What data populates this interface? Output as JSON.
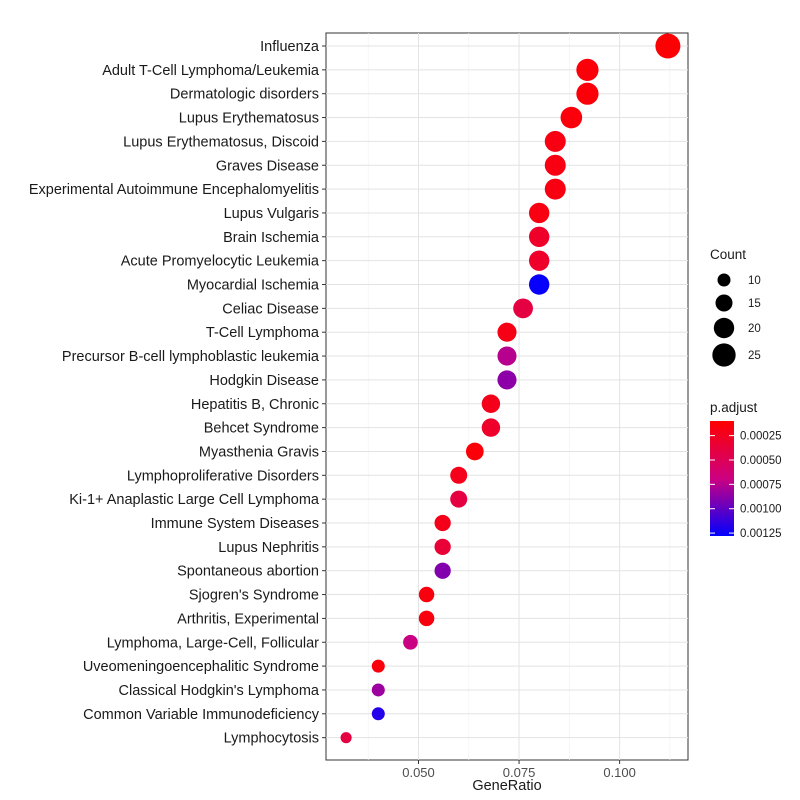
{
  "chart_data": {
    "type": "scatter",
    "xlabel": "GeneRatio",
    "ylabel": "",
    "title": "",
    "xlim": [
      0.027,
      0.117
    ],
    "x_ticks": [
      0.05,
      0.075,
      0.1
    ],
    "x_tick_labels": [
      "0.050",
      "0.075",
      "0.100"
    ],
    "grid": true,
    "legend_placement": "right",
    "size_legend": {
      "title": "Count",
      "values": [
        10,
        15,
        20,
        25
      ],
      "labels": [
        "10",
        "15",
        "20",
        "25"
      ]
    },
    "color_legend": {
      "title": "p.adjust",
      "low_color": "#ff0000",
      "high_color": "#0000ff",
      "range": [
        0.0001,
        0.00128
      ],
      "ticks": [
        0.00025,
        0.0005,
        0.00075,
        0.001,
        0.00125
      ],
      "tick_labels": [
        "0.00025",
        "0.00050",
        "0.00075",
        "0.00100",
        "0.00125"
      ]
    },
    "points": [
      {
        "term": "Influenza",
        "gene_ratio": 0.112,
        "count": 28,
        "p_adjust": 0.00012
      },
      {
        "term": "Adult T-Cell Lymphoma/Leukemia",
        "gene_ratio": 0.092,
        "count": 23,
        "p_adjust": 0.00014
      },
      {
        "term": "Dermatologic disorders",
        "gene_ratio": 0.092,
        "count": 23,
        "p_adjust": 0.00014
      },
      {
        "term": "Lupus Erythematosus",
        "gene_ratio": 0.088,
        "count": 22,
        "p_adjust": 0.00015
      },
      {
        "term": "Lupus Erythematosus, Discoid",
        "gene_ratio": 0.084,
        "count": 21,
        "p_adjust": 0.00018
      },
      {
        "term": "Graves Disease",
        "gene_ratio": 0.084,
        "count": 21,
        "p_adjust": 0.00018
      },
      {
        "term": "Experimental Autoimmune Encephalomyelitis",
        "gene_ratio": 0.084,
        "count": 21,
        "p_adjust": 0.00018
      },
      {
        "term": "Lupus Vulgaris",
        "gene_ratio": 0.08,
        "count": 20,
        "p_adjust": 0.00018
      },
      {
        "term": "Brain Ischemia",
        "gene_ratio": 0.08,
        "count": 20,
        "p_adjust": 0.0003
      },
      {
        "term": "Acute Promyelocytic Leukemia",
        "gene_ratio": 0.08,
        "count": 20,
        "p_adjust": 0.0003
      },
      {
        "term": "Myocardial Ischemia",
        "gene_ratio": 0.08,
        "count": 20,
        "p_adjust": 0.00126
      },
      {
        "term": "Celiac Disease",
        "gene_ratio": 0.076,
        "count": 19,
        "p_adjust": 0.0004
      },
      {
        "term": "T-Cell Lymphoma",
        "gene_ratio": 0.072,
        "count": 18,
        "p_adjust": 0.0002
      },
      {
        "term": "Precursor B-cell lymphoblastic leukemia",
        "gene_ratio": 0.072,
        "count": 18,
        "p_adjust": 0.00075
      },
      {
        "term": "Hodgkin Disease",
        "gene_ratio": 0.072,
        "count": 18,
        "p_adjust": 0.00087
      },
      {
        "term": "Hepatitis B, Chronic",
        "gene_ratio": 0.068,
        "count": 17,
        "p_adjust": 0.00022
      },
      {
        "term": "Behcet Syndrome",
        "gene_ratio": 0.068,
        "count": 17,
        "p_adjust": 0.0003
      },
      {
        "term": "Myasthenia Gravis",
        "gene_ratio": 0.064,
        "count": 16,
        "p_adjust": 0.00014
      },
      {
        "term": "Lymphoproliferative Disorders",
        "gene_ratio": 0.06,
        "count": 15,
        "p_adjust": 0.00022
      },
      {
        "term": "Ki-1+ Anaplastic Large Cell Lymphoma",
        "gene_ratio": 0.06,
        "count": 15,
        "p_adjust": 0.0004
      },
      {
        "term": "Immune System Diseases",
        "gene_ratio": 0.056,
        "count": 14,
        "p_adjust": 0.00022
      },
      {
        "term": "Lupus Nephritis",
        "gene_ratio": 0.056,
        "count": 14,
        "p_adjust": 0.00035
      },
      {
        "term": "Spontaneous abortion",
        "gene_ratio": 0.056,
        "count": 14,
        "p_adjust": 0.0009
      },
      {
        "term": "Sjogren's Syndrome",
        "gene_ratio": 0.052,
        "count": 13,
        "p_adjust": 0.00017
      },
      {
        "term": "Arthritis, Experimental",
        "gene_ratio": 0.052,
        "count": 13,
        "p_adjust": 0.00017
      },
      {
        "term": "Lymphoma, Large-Cell, Follicular",
        "gene_ratio": 0.048,
        "count": 12,
        "p_adjust": 0.0007
      },
      {
        "term": "Uveomeningoencephalitic Syndrome",
        "gene_ratio": 0.04,
        "count": 10,
        "p_adjust": 0.00016
      },
      {
        "term": "Classical Hodgkin's Lymphoma",
        "gene_ratio": 0.04,
        "count": 10,
        "p_adjust": 0.00083
      },
      {
        "term": "Common Variable Immunodeficiency",
        "gene_ratio": 0.04,
        "count": 10,
        "p_adjust": 0.00118
      },
      {
        "term": "Lymphocytosis",
        "gene_ratio": 0.032,
        "count": 8,
        "p_adjust": 0.0004
      }
    ]
  }
}
